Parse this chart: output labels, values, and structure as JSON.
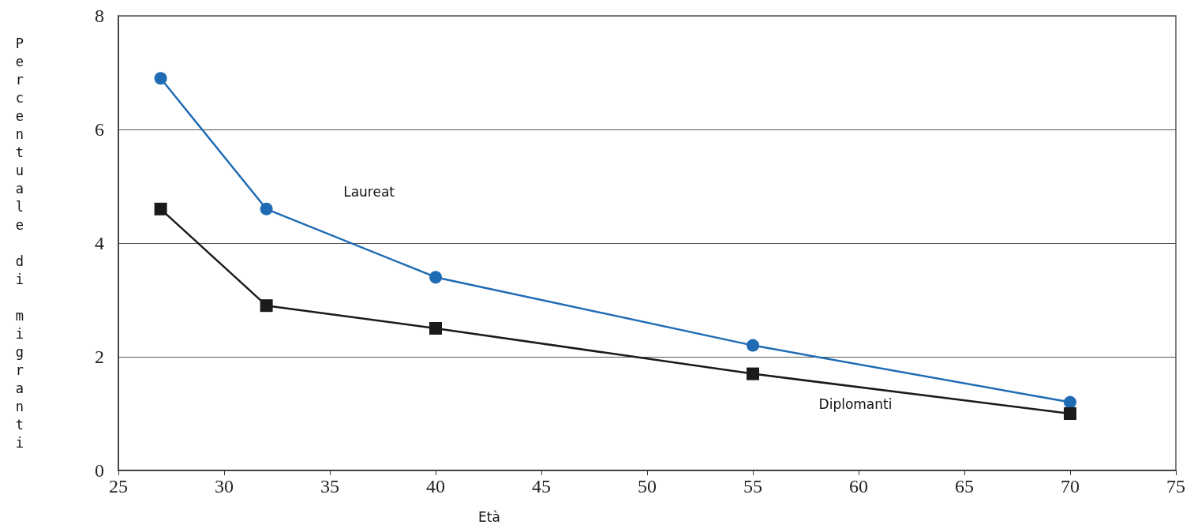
{
  "chart_data": {
    "type": "line",
    "xlabel": "Età",
    "ylabel": "Percentuale di migranti",
    "xlim": [
      25,
      75
    ],
    "xticks": [
      25,
      30,
      35,
      40,
      45,
      50,
      55,
      60,
      65,
      70,
      75
    ],
    "ylim": [
      0,
      8
    ],
    "yticks": [
      0,
      2,
      4,
      6,
      8
    ],
    "grid": "y",
    "series": [
      {
        "name": "Laureat",
        "color": "#1f6cb4",
        "marker": "circle",
        "x": [
          27,
          32,
          40,
          55,
          70
        ],
        "values": [
          6.9,
          4.6,
          3.4,
          2.2,
          1.2
        ]
      },
      {
        "name": "Diplomanti",
        "color": "#1a1a1a",
        "marker": "square",
        "x": [
          27,
          32,
          40,
          55,
          70
        ],
        "values": [
          4.6,
          2.9,
          2.5,
          1.7,
          1.0
        ]
      }
    ]
  }
}
